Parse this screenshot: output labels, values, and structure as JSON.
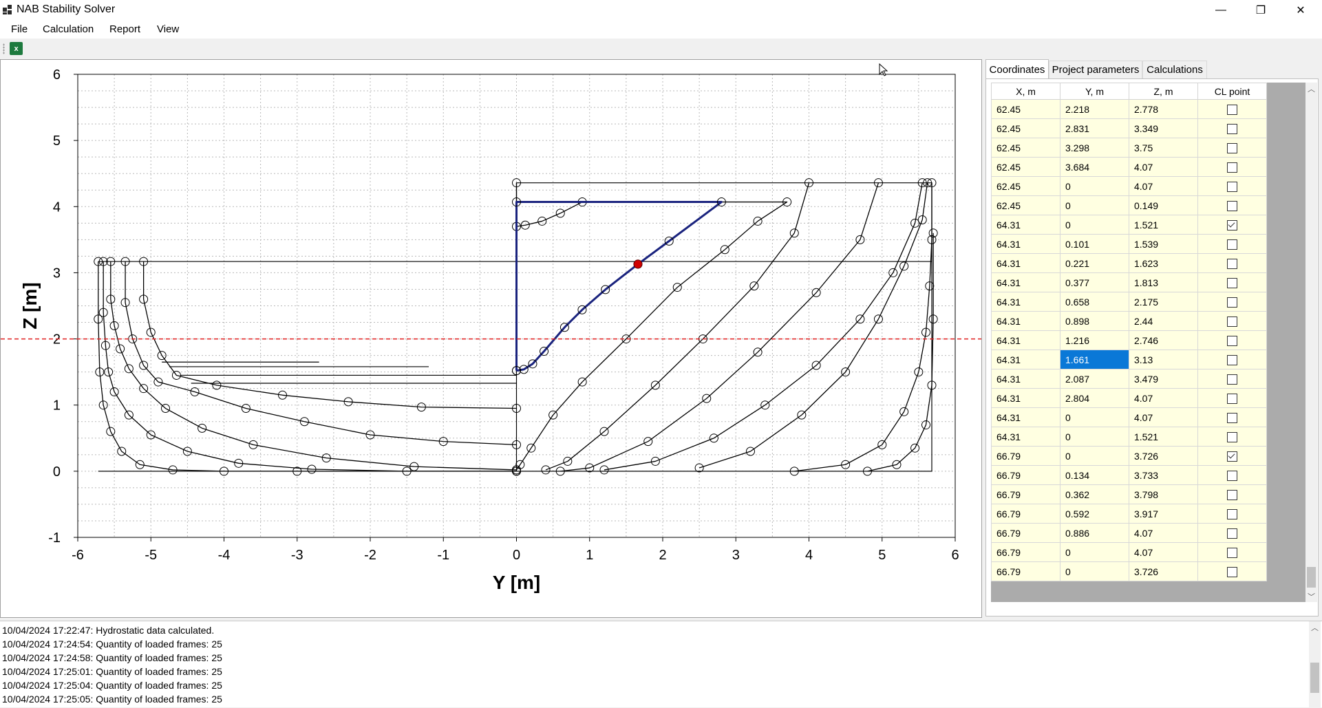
{
  "app": {
    "title": "NAB Stability Solver"
  },
  "window_controls": {
    "minimize": "—",
    "maximize": "❐",
    "close": "✕"
  },
  "menu": [
    "File",
    "Calculation",
    "Report",
    "View"
  ],
  "toolbar": {
    "export_icon": "excel-icon",
    "export_glyph": "x"
  },
  "tabs": [
    "Coordinates",
    "Project parameters",
    "Calculations"
  ],
  "active_tab": "Coordinates",
  "grid": {
    "columns": [
      "X, m",
      "Y, m",
      "Z, m",
      "CL point"
    ],
    "rows": [
      [
        "62.45",
        "2.218",
        "2.778",
        false
      ],
      [
        "62.45",
        "2.831",
        "3.349",
        false
      ],
      [
        "62.45",
        "3.298",
        "3.75",
        false
      ],
      [
        "62.45",
        "3.684",
        "4.07",
        false
      ],
      [
        "62.45",
        "0",
        "4.07",
        false
      ],
      [
        "62.45",
        "0",
        "0.149",
        false
      ],
      [
        "64.31",
        "0",
        "1.521",
        true
      ],
      [
        "64.31",
        "0.101",
        "1.539",
        false
      ],
      [
        "64.31",
        "0.221",
        "1.623",
        false
      ],
      [
        "64.31",
        "0.377",
        "1.813",
        false
      ],
      [
        "64.31",
        "0.658",
        "2.175",
        false
      ],
      [
        "64.31",
        "0.898",
        "2.44",
        false
      ],
      [
        "64.31",
        "1.216",
        "2.746",
        false
      ],
      [
        "64.31",
        "1.661",
        "3.13",
        false
      ],
      [
        "64.31",
        "2.087",
        "3.479",
        false
      ],
      [
        "64.31",
        "2.804",
        "4.07",
        false
      ],
      [
        "64.31",
        "0",
        "4.07",
        false
      ],
      [
        "64.31",
        "0",
        "1.521",
        false
      ],
      [
        "66.79",
        "0",
        "3.726",
        true
      ],
      [
        "66.79",
        "0.134",
        "3.733",
        false
      ],
      [
        "66.79",
        "0.362",
        "3.798",
        false
      ],
      [
        "66.79",
        "0.592",
        "3.917",
        false
      ],
      [
        "66.79",
        "0.886",
        "4.07",
        false
      ],
      [
        "66.79",
        "0",
        "4.07",
        false
      ],
      [
        "66.79",
        "0",
        "3.726",
        false
      ]
    ],
    "selected_value": "1.661"
  },
  "log": [
    "10/04/2024 17:22:47: Hydrostatic data calculated.",
    "10/04/2024 17:24:54: Quantity of loaded frames: 25",
    "10/04/2024 17:24:58: Quantity of loaded frames: 25",
    "10/04/2024 17:25:01: Quantity of loaded frames: 25",
    "10/04/2024 17:25:04: Quantity of loaded frames: 25",
    "10/04/2024 17:25:05: Quantity of loaded frames: 25"
  ],
  "colors": {
    "selected_frame": "#1a237e",
    "waterline": "#e02020",
    "cl_point": "#d00000",
    "cell_bg": "#ffffe1",
    "selection": "#0a78d7"
  },
  "chart_data": {
    "type": "line",
    "xlabel": "Y [m]",
    "ylabel": "Z [m]",
    "xlim": [
      -6,
      6
    ],
    "ylim": [
      -1,
      6
    ],
    "xticks": [
      -6,
      -5,
      -4,
      -3,
      -2,
      -1,
      0,
      1,
      2,
      3,
      4,
      5,
      6
    ],
    "yticks": [
      -1,
      0,
      1,
      2,
      3,
      4,
      5,
      6
    ],
    "grid": true,
    "waterline_z": 2.0,
    "highlight_point": [
      1.661,
      3.13
    ],
    "highlight_frame": [
      [
        0,
        1.521
      ],
      [
        0.101,
        1.539
      ],
      [
        0.221,
        1.623
      ],
      [
        0.377,
        1.813
      ],
      [
        0.658,
        2.175
      ],
      [
        0.898,
        2.44
      ],
      [
        1.216,
        2.746
      ],
      [
        1.661,
        3.13
      ],
      [
        2.087,
        3.479
      ],
      [
        2.804,
        4.07
      ],
      [
        0,
        4.07
      ],
      [
        0,
        1.521
      ]
    ],
    "aft_frames": [
      [
        [
          -5.72,
          3.17
        ],
        [
          -5.72,
          2.3
        ],
        [
          -5.7,
          1.5
        ],
        [
          -5.65,
          1.0
        ],
        [
          -5.55,
          0.6
        ],
        [
          -5.4,
          0.3
        ],
        [
          -5.15,
          0.1
        ],
        [
          -4.7,
          0.02
        ],
        [
          -4.0,
          0
        ],
        [
          -3.0,
          0
        ],
        [
          0,
          0
        ]
      ],
      [
        [
          -5.65,
          3.17
        ],
        [
          -5.65,
          2.4
        ],
        [
          -5.62,
          1.9
        ],
        [
          -5.58,
          1.5
        ],
        [
          -5.5,
          1.2
        ],
        [
          -5.3,
          0.85
        ],
        [
          -5.0,
          0.55
        ],
        [
          -4.5,
          0.3
        ],
        [
          -3.8,
          0.12
        ],
        [
          -2.8,
          0.03
        ],
        [
          -1.5,
          0
        ],
        [
          0,
          0
        ]
      ],
      [
        [
          -5.55,
          3.17
        ],
        [
          -5.55,
          2.6
        ],
        [
          -5.5,
          2.2
        ],
        [
          -5.42,
          1.85
        ],
        [
          -5.3,
          1.55
        ],
        [
          -5.1,
          1.25
        ],
        [
          -4.8,
          0.95
        ],
        [
          -4.3,
          0.65
        ],
        [
          -3.6,
          0.4
        ],
        [
          -2.6,
          0.2
        ],
        [
          -1.4,
          0.07
        ],
        [
          0,
          0.02
        ]
      ],
      [
        [
          -5.35,
          3.17
        ],
        [
          -5.35,
          2.55
        ],
        [
          -5.25,
          2.0
        ],
        [
          -5.1,
          1.6
        ],
        [
          -4.9,
          1.35
        ],
        [
          -4.4,
          1.2
        ],
        [
          -3.7,
          0.95
        ],
        [
          -2.9,
          0.75
        ],
        [
          -2.0,
          0.55
        ],
        [
          -1.0,
          0.45
        ],
        [
          0,
          0.4
        ]
      ],
      [
        [
          -5.1,
          3.17
        ],
        [
          -5.1,
          2.6
        ],
        [
          -5.0,
          2.1
        ],
        [
          -4.85,
          1.75
        ],
        [
          -4.65,
          1.45
        ],
        [
          -4.1,
          1.3
        ],
        [
          -3.2,
          1.15
        ],
        [
          -2.3,
          1.05
        ],
        [
          -1.3,
          0.97
        ],
        [
          0,
          0.95
        ]
      ]
    ],
    "fwd_frames": [
      [
        [
          0,
          4.36
        ],
        [
          0,
          3.7
        ],
        [
          0.12,
          3.72
        ],
        [
          0.35,
          3.78
        ],
        [
          0.6,
          3.9
        ],
        [
          0.9,
          4.07
        ],
        [
          3.7,
          4.07
        ],
        [
          3.3,
          3.78
        ],
        [
          2.85,
          3.35
        ],
        [
          2.2,
          2.78
        ],
        [
          1.5,
          2.0
        ],
        [
          0.9,
          1.35
        ],
        [
          0.5,
          0.85
        ],
        [
          0.2,
          0.35
        ],
        [
          0.05,
          0.1
        ],
        [
          0,
          0.02
        ]
      ],
      [
        [
          4.0,
          4.36
        ],
        [
          3.8,
          3.6
        ],
        [
          3.25,
          2.8
        ],
        [
          2.55,
          2.0
        ],
        [
          1.9,
          1.3
        ],
        [
          1.2,
          0.6
        ],
        [
          0.7,
          0.15
        ],
        [
          0.4,
          0.02
        ]
      ],
      [
        [
          4.95,
          4.36
        ],
        [
          4.7,
          3.5
        ],
        [
          4.1,
          2.7
        ],
        [
          3.3,
          1.8
        ],
        [
          2.6,
          1.1
        ],
        [
          1.8,
          0.45
        ],
        [
          1.0,
          0.05
        ],
        [
          0.6,
          0
        ]
      ],
      [
        [
          5.55,
          4.36
        ],
        [
          5.45,
          3.75
        ],
        [
          5.15,
          3.0
        ],
        [
          4.7,
          2.3
        ],
        [
          4.1,
          1.6
        ],
        [
          3.4,
          1.0
        ],
        [
          2.7,
          0.5
        ],
        [
          1.9,
          0.15
        ],
        [
          1.2,
          0.02
        ]
      ],
      [
        [
          5.62,
          4.36
        ],
        [
          5.55,
          3.8
        ],
        [
          5.3,
          3.1
        ],
        [
          4.95,
          2.3
        ],
        [
          4.5,
          1.5
        ],
        [
          3.9,
          0.85
        ],
        [
          3.2,
          0.3
        ],
        [
          2.5,
          0.05
        ]
      ],
      [
        [
          5.68,
          4.36
        ],
        [
          5.68,
          3.5
        ],
        [
          5.65,
          2.8
        ],
        [
          5.6,
          2.1
        ],
        [
          5.5,
          1.5
        ],
        [
          5.3,
          0.9
        ],
        [
          5.0,
          0.4
        ],
        [
          4.5,
          0.1
        ],
        [
          3.8,
          0
        ]
      ],
      [
        [
          5.7,
          3.6
        ],
        [
          5.7,
          2.3
        ],
        [
          5.68,
          1.3
        ],
        [
          5.6,
          0.7
        ],
        [
          5.45,
          0.35
        ],
        [
          5.2,
          0.1
        ],
        [
          4.8,
          0
        ]
      ]
    ]
  }
}
